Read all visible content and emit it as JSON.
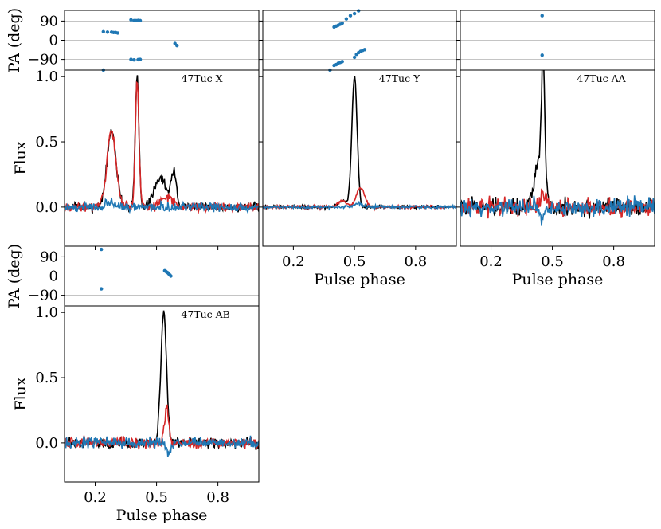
{
  "chart_data": {
    "type": "line",
    "colors": {
      "total": "#000000",
      "linear": "#d62728",
      "circular": "#1f77b4",
      "pa": "#1f77b4",
      "grid": "#b0b0b0"
    },
    "xlabel": "Pulse phase",
    "flux_ylabel": "Flux",
    "pa_ylabel": "PA (deg)",
    "xlim": [
      0.05,
      1.0
    ],
    "x_ticks": [
      "0.2",
      "0.5",
      "0.8"
    ],
    "x_tick_values": [
      0.2,
      0.5,
      0.8
    ],
    "flux_ylim": [
      -0.3,
      1.05
    ],
    "flux_ticks": [
      "0.0",
      "0.5",
      "1.0"
    ],
    "flux_tick_values": [
      0.0,
      0.5,
      1.0
    ],
    "pa_ylim": [
      -140,
      140
    ],
    "pa_ticks": [
      "90",
      "0",
      "−90"
    ],
    "pa_tick_values": [
      90,
      0,
      -90
    ],
    "pulsars": [
      {
        "name": "47Tuc X",
        "noise": 0.035,
        "total_peaks": [
          [
            0.28,
            0.58,
            0.022
          ],
          [
            0.405,
            1.0,
            0.009
          ],
          [
            0.52,
            0.22,
            0.03
          ],
          [
            0.585,
            0.26,
            0.012
          ]
        ],
        "linear_peaks": [
          [
            0.28,
            0.58,
            0.022
          ],
          [
            0.405,
            0.97,
            0.009
          ],
          [
            0.55,
            0.07,
            0.03
          ]
        ],
        "circular_peaks": [
          [
            0.28,
            0.04,
            0.02
          ]
        ],
        "pa_points": [
          [
            0.24,
            40
          ],
          [
            0.26,
            38
          ],
          [
            0.28,
            38
          ],
          [
            0.29,
            36
          ],
          [
            0.3,
            36
          ],
          [
            0.31,
            34
          ],
          [
            0.375,
            96
          ],
          [
            0.39,
            92
          ],
          [
            0.4,
            92
          ],
          [
            0.41,
            93
          ],
          [
            0.42,
            92
          ],
          [
            0.375,
            -90
          ],
          [
            0.39,
            -92
          ],
          [
            0.41,
            -91
          ],
          [
            0.42,
            -90
          ],
          [
            0.59,
            -15
          ],
          [
            0.6,
            -25
          ],
          [
            0.24,
            -140
          ]
        ]
      },
      {
        "name": "47Tuc Y",
        "noise": 0.012,
        "total_peaks": [
          [
            0.44,
            0.05,
            0.02
          ],
          [
            0.5,
            1.0,
            0.013
          ]
        ],
        "linear_peaks": [
          [
            0.44,
            0.05,
            0.02
          ],
          [
            0.53,
            0.15,
            0.02
          ]
        ],
        "circular_peaks": [
          [
            0.52,
            0.03,
            0.02
          ]
        ],
        "pa_points": [
          [
            0.4,
            62
          ],
          [
            0.41,
            66
          ],
          [
            0.42,
            70
          ],
          [
            0.43,
            75
          ],
          [
            0.44,
            80
          ],
          [
            0.46,
            100
          ],
          [
            0.48,
            115
          ],
          [
            0.5,
            125
          ],
          [
            0.52,
            138
          ],
          [
            0.4,
            -118
          ],
          [
            0.41,
            -114
          ],
          [
            0.42,
            -108
          ],
          [
            0.43,
            -104
          ],
          [
            0.44,
            -100
          ],
          [
            0.5,
            -80
          ],
          [
            0.51,
            -66
          ],
          [
            0.52,
            -58
          ],
          [
            0.53,
            -52
          ],
          [
            0.54,
            -48
          ],
          [
            0.55,
            -44
          ],
          [
            0.38,
            -140
          ]
        ]
      },
      {
        "name": "47Tuc AA",
        "noise": 0.065,
        "total_peaks": [
          [
            0.43,
            0.3,
            0.02
          ],
          [
            0.455,
            1.0,
            0.009
          ]
        ],
        "linear_peaks": [
          [
            0.455,
            0.12,
            0.015
          ]
        ],
        "circular_peaks": [
          [
            0.45,
            -0.1,
            0.012
          ]
        ],
        "pa_points": [
          [
            0.45,
            115
          ],
          [
            0.45,
            -70
          ]
        ]
      },
      {
        "name": "47Tuc AB",
        "noise": 0.04,
        "total_peaks": [
          [
            0.535,
            1.0,
            0.014
          ]
        ],
        "linear_peaks": [
          [
            0.55,
            0.28,
            0.01
          ]
        ],
        "circular_peaks": [
          [
            0.56,
            -0.1,
            0.01
          ]
        ],
        "pa_points": [
          [
            0.23,
            125
          ],
          [
            0.23,
            -60
          ],
          [
            0.54,
            25
          ],
          [
            0.545,
            22
          ],
          [
            0.55,
            18
          ],
          [
            0.555,
            15
          ],
          [
            0.56,
            10
          ],
          [
            0.565,
            5
          ],
          [
            0.57,
            0
          ]
        ]
      }
    ]
  }
}
